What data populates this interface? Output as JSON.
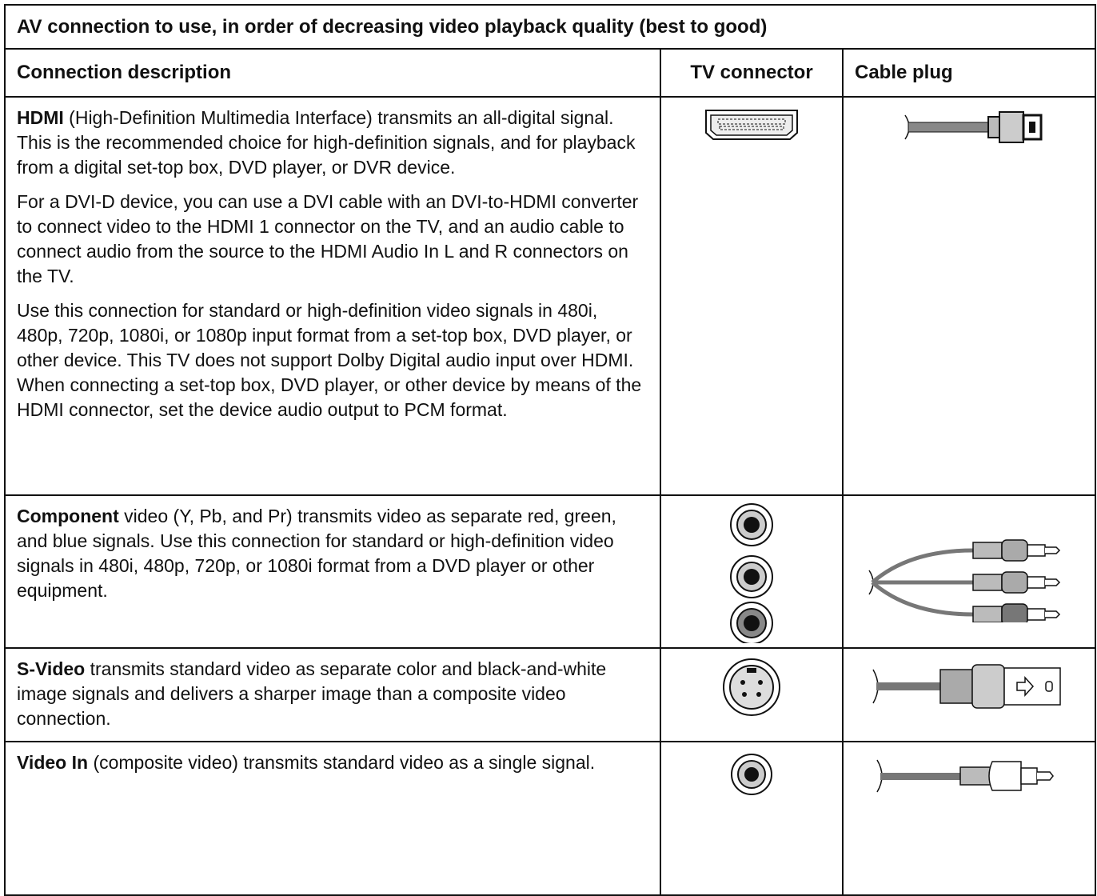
{
  "table": {
    "title": "AV connection to use, in order of decreasing video playback quality (best to good)",
    "headers": [
      "Connection description",
      "TV connector",
      "Cable plug"
    ],
    "rows": [
      {
        "lead": "HDMI",
        "paragraphs": [
          "(High-Definition Multimedia Interface) transmits an all-digital signal. This is the recommended choice for high-definition signals, and for playback from a digital set-top box, DVD player, or DVR device.",
          "For a DVI-D device, you can use a DVI cable with an DVI-to-HDMI converter to connect video to the HDMI 1 connector on the TV, and an audio cable to connect audio from the source to the HDMI Audio In L and R connectors on the TV.",
          "Use this connection for standard or high-definition video signals in 480i, 480p, 720p, 1080i, or 1080p input format from a set-top box, DVD player, or other device. This TV does not support Dolby Digital audio input over HDMI. When connecting a set-top box, DVD player, or other device by means of the HDMI connector, set the device audio output to PCM format."
        ]
      },
      {
        "lead": "Component",
        "paragraphs": [
          "video (Y, Pb, and Pr) transmits video as separate red, green, and blue signals. Use this connection for standard or high-definition video signals in 480i, 480p, 720p, or 1080i format from a DVD player or other equipment."
        ]
      },
      {
        "lead": "S-Video",
        "paragraphs": [
          "transmits standard video as separate color and black-and-white image signals and delivers a sharper image than a composite video connection."
        ]
      },
      {
        "lead": "Video In",
        "paragraphs": [
          "(composite video) transmits standard video as a single signal."
        ]
      }
    ]
  }
}
